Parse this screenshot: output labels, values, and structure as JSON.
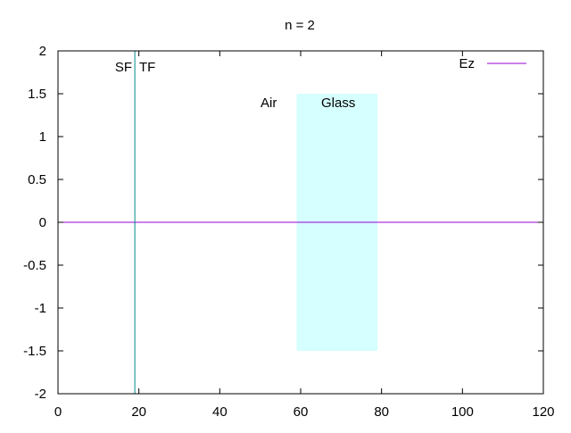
{
  "chart_data": {
    "type": "line",
    "title": "n = 2",
    "xlabel": "",
    "ylabel": "",
    "xlim": [
      0,
      120
    ],
    "ylim": [
      -2,
      2
    ],
    "x_ticks": [
      0,
      20,
      40,
      60,
      80,
      100,
      120
    ],
    "y_ticks": [
      2,
      1.5,
      1,
      0.5,
      0,
      -0.5,
      -1,
      -1.5,
      -2
    ],
    "x_tick_labels": [
      "0",
      "20",
      "40",
      "60",
      "80",
      "100",
      "120"
    ],
    "y_tick_labels": [
      "2",
      "1.5",
      "1",
      "0.5",
      "0",
      "-0.5",
      "-1",
      "-1.5",
      "-2"
    ],
    "grid": false,
    "legend_position": "top-right",
    "series": [
      {
        "name": "Ez",
        "color": "#9400d3",
        "x": [
          0,
          120
        ],
        "values": [
          0,
          0
        ]
      }
    ],
    "region": {
      "label_left": "Air",
      "label_right": "Glass",
      "x_range": [
        59,
        79
      ],
      "y_range": [
        -1.5,
        1.5
      ],
      "color": "#d6ffff"
    },
    "boundary": {
      "x": 19,
      "label_left": "SF",
      "label_right": "TF",
      "color": "#008b8b"
    }
  }
}
